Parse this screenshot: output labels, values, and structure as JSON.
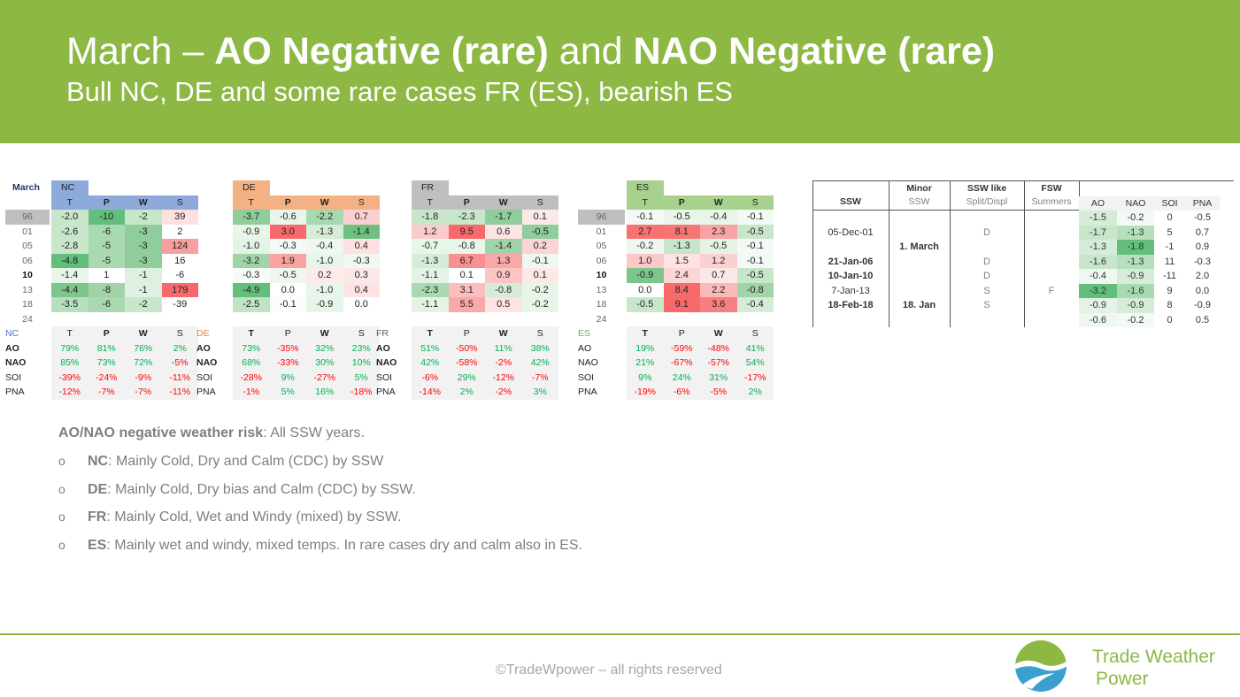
{
  "header": {
    "title_pre": "March – ",
    "title_b1": "AO Negative (rare)",
    "title_mid": " and ",
    "title_b2": "NAO Negative (rare)",
    "subtitle": "Bull NC, DE and some rare cases FR (ES), bearish ES"
  },
  "month_label": "March",
  "years": [
    "96",
    "01",
    "05",
    "06",
    "10",
    "13",
    "18",
    "24"
  ],
  "bold_year": "10",
  "metric_headers": [
    "T",
    "P",
    "W",
    "S"
  ],
  "index_labels": [
    "AO",
    "NAO",
    "SOI",
    "PNA"
  ],
  "regions": [
    {
      "name": "NC",
      "color": "#8eaadb",
      "name_color": "#4472c4",
      "values": [
        [
          "-2.0",
          "-10",
          "-2",
          "39"
        ],
        [
          "-2.6",
          "-6",
          "-3",
          "2"
        ],
        [
          "-2.8",
          "-5",
          "-3",
          "124"
        ],
        [
          "-4.8",
          "-5",
          "-3",
          "16"
        ],
        [
          "-1.4",
          "1",
          "-1",
          "-6"
        ],
        [
          "-4.4",
          "-8",
          "-1",
          "179"
        ],
        [
          "-3.5",
          "-6",
          "-2",
          "-39"
        ],
        [
          "",
          "",
          "",
          ""
        ]
      ],
      "colors": [
        [
          "#c8e6c9",
          "#63be7b",
          "#c8e6c9",
          "#fde0e0"
        ],
        [
          "#c8e6c9",
          "#a9d9b0",
          "#8fce9c",
          "#ffffff"
        ],
        [
          "#c8e6c9",
          "#a9d9b0",
          "#8fce9c",
          "#f8a0a0"
        ],
        [
          "#63be7b",
          "#a9d9b0",
          "#8fce9c",
          "#ffffff"
        ],
        [
          "#e8f5e9",
          "#ffffff",
          "#dff0e2",
          "#ffffff"
        ],
        [
          "#7cc68c",
          "#a0d4a8",
          "#dff0e2",
          "#f8696b"
        ],
        [
          "#b5dfbd",
          "#a9d9b0",
          "#c8e6c9",
          "#ffffff"
        ],
        [
          "#ffffff",
          "#ffffff",
          "#ffffff",
          "#ffffff"
        ]
      ],
      "corr": [
        [
          "79%",
          "81%",
          "76%",
          "2%"
        ],
        [
          "85%",
          "73%",
          "72%",
          "-5%"
        ],
        [
          "-39%",
          "-24%",
          "-9%",
          "-11%"
        ],
        [
          "-12%",
          "-7%",
          "-7%",
          "-11%"
        ]
      ]
    },
    {
      "name": "DE",
      "color": "#f4b183",
      "name_color": "#ed7d31",
      "values": [
        [
          "-3.7",
          "-0.6",
          "-2.2",
          "0.7"
        ],
        [
          "-0.9",
          "3.0",
          "-1.3",
          "-1.4"
        ],
        [
          "-1.0",
          "-0.3",
          "-0.4",
          "0.4"
        ],
        [
          "-3.2",
          "1.9",
          "-1.0",
          "-0.3"
        ],
        [
          "-0.3",
          "-0.5",
          "0.2",
          "0.3"
        ],
        [
          "-4.9",
          "0.0",
          "-1.0",
          "0.4"
        ],
        [
          "-2.5",
          "-0.1",
          "-0.9",
          "0.0"
        ],
        [
          "",
          "",
          "",
          ""
        ]
      ],
      "colors": [
        [
          "#8fce9c",
          "#e8f5e9",
          "#a9d9b0",
          "#fbd0d0"
        ],
        [
          "#e8f5e9",
          "#f8696b",
          "#d5ecd8",
          "#6cc17f"
        ],
        [
          "#e3f3e6",
          "#f3f9f4",
          "#eef8f0",
          "#fde0e0"
        ],
        [
          "#a0d4a8",
          "#f9a3a3",
          "#e8f5e9",
          "#f1f8f2"
        ],
        [
          "#f6fbf7",
          "#eef8f0",
          "#fdeaea",
          "#fde8e8"
        ],
        [
          "#63be7b",
          "#ffffff",
          "#e8f5e9",
          "#fde3e3"
        ],
        [
          "#bfe3c5",
          "#fafdfb",
          "#e8f5e9",
          "#ffffff"
        ],
        [
          "#ffffff",
          "#ffffff",
          "#ffffff",
          "#ffffff"
        ]
      ],
      "corr": [
        [
          "73%",
          "-35%",
          "32%",
          "23%"
        ],
        [
          "68%",
          "-33%",
          "30%",
          "10%"
        ],
        [
          "-28%",
          "9%",
          "-27%",
          "5%"
        ],
        [
          "-1%",
          "5%",
          "16%",
          "-18%"
        ]
      ]
    },
    {
      "name": "FR",
      "color": "#bfbfbf",
      "name_color": "#595959",
      "values": [
        [
          "-1.8",
          "-2.3",
          "-1.7",
          "0.1"
        ],
        [
          "1.2",
          "9.5",
          "0.6",
          "-0.5"
        ],
        [
          "-0.7",
          "-0.8",
          "-1.4",
          "0.2"
        ],
        [
          "-1.3",
          "6.7",
          "1.3",
          "-0.1"
        ],
        [
          "-1.1",
          "0.1",
          "0.9",
          "0.1"
        ],
        [
          "-2.3",
          "3.1",
          "-0.8",
          "-0.2"
        ],
        [
          "-1.1",
          "5.5",
          "0.5",
          "-0.2"
        ],
        [
          "",
          "",
          "",
          ""
        ]
      ],
      "colors": [
        [
          "#c8e6c9",
          "#c8e6c9",
          "#8fce9c",
          "#fde8e8"
        ],
        [
          "#fbcaca",
          "#f8696b",
          "#fde3e3",
          "#8fce9c"
        ],
        [
          "#e8f5e9",
          "#e8f5e9",
          "#a0d4a8",
          "#fbd5d5"
        ],
        [
          "#d5ecd8",
          "#f98f8f",
          "#f9a8a8",
          "#eef8f0"
        ],
        [
          "#e3f3e6",
          "#ffffff",
          "#fcc5c5",
          "#fde8e8"
        ],
        [
          "#a9d9b0",
          "#fbbdbd",
          "#d5ecd8",
          "#e8f5e9"
        ],
        [
          "#e3f3e6",
          "#faa9a9",
          "#fde3e3",
          "#e8f5e9"
        ],
        [
          "#ffffff",
          "#ffffff",
          "#ffffff",
          "#ffffff"
        ]
      ],
      "corr": [
        [
          "51%",
          "-50%",
          "11%",
          "38%"
        ],
        [
          "42%",
          "-58%",
          "-2%",
          "42%"
        ],
        [
          "-6%",
          "29%",
          "-12%",
          "-7%"
        ],
        [
          "-14%",
          "2%",
          "-2%",
          "3%"
        ]
      ]
    },
    {
      "name": "ES",
      "color": "#a9d18e",
      "name_color": "#70ad47",
      "values": [
        [
          "-0.1",
          "-0.5",
          "-0.4",
          "-0.1"
        ],
        [
          "2.7",
          "8.1",
          "2.3",
          "-0.5"
        ],
        [
          "-0.2",
          "-1.3",
          "-0.5",
          "-0.1"
        ],
        [
          "1.0",
          "1.5",
          "1.2",
          "-0.1"
        ],
        [
          "-0.9",
          "2.4",
          "0.7",
          "-0.5"
        ],
        [
          "0.0",
          "8.4",
          "2.2",
          "-0.8"
        ],
        [
          "-0.5",
          "9.1",
          "3.6",
          "-0.4"
        ],
        [
          "",
          "",
          "",
          ""
        ]
      ],
      "colors": [
        [
          "#f3f9f4",
          "#e8f5e9",
          "#e8f5e9",
          "#f3f9f4"
        ],
        [
          "#f87272",
          "#f87575",
          "#f9a3a3",
          "#c8e6c9"
        ],
        [
          "#eef8f0",
          "#c8e6c9",
          "#e3f3e6",
          "#f3f9f4"
        ],
        [
          "#fbc7c7",
          "#fde3e3",
          "#fbd0d0",
          "#f3f9f4"
        ],
        [
          "#7cc68c",
          "#fcd6d6",
          "#fde8e8",
          "#c8e6c9"
        ],
        [
          "#ffffff",
          "#f8696b",
          "#fbbaba",
          "#a0d4a8"
        ],
        [
          "#c8e6c9",
          "#f8696b",
          "#f87f7f",
          "#d5ecd8"
        ],
        [
          "#ffffff",
          "#ffffff",
          "#ffffff",
          "#ffffff"
        ]
      ],
      "corr": [
        [
          "19%",
          "-59%",
          "-48%",
          "41%"
        ],
        [
          "21%",
          "-67%",
          "-57%",
          "54%"
        ],
        [
          "9%",
          "24%",
          "31%",
          "-17%"
        ],
        [
          "-19%",
          "-6%",
          "-5%",
          "2%"
        ]
      ]
    }
  ],
  "ssw_table": {
    "headers": {
      "ssw": "SSW",
      "minor": "Minor",
      "minor_sub": "SSW",
      "like": "SSW like",
      "like_sub": "Split/Displ",
      "fsw": "FSW",
      "fsw_sub": "Summers",
      "idx": [
        "AO",
        "NAO",
        "SOI",
        "PNA"
      ]
    },
    "rows": [
      {
        "ssw": "",
        "minor": "",
        "like": "",
        "fsw": "",
        "idx": [
          "-1.5",
          "-0.2",
          "0",
          "-0.5"
        ],
        "bold": false
      },
      {
        "ssw": "05-Dec-01",
        "minor": "",
        "like": "D",
        "fsw": "",
        "idx": [
          "-1.7",
          "-1.3",
          "5",
          "0.7"
        ],
        "bold": false
      },
      {
        "ssw": "",
        "minor": "1. March",
        "like": "",
        "fsw": "",
        "idx": [
          "-1.3",
          "-1.8",
          "-1",
          "0.9"
        ],
        "bold": false
      },
      {
        "ssw": "21-Jan-06",
        "minor": "",
        "like": "D",
        "fsw": "",
        "idx": [
          "-1.6",
          "-1.3",
          "11",
          "-0.3"
        ],
        "bold": true
      },
      {
        "ssw": "10-Jan-10",
        "minor": "",
        "like": "D",
        "fsw": "",
        "idx": [
          "-0.4",
          "-0.9",
          "-11",
          "2.0"
        ],
        "bold": true
      },
      {
        "ssw": "7-Jan-13",
        "minor": "",
        "like": "S",
        "fsw": "F",
        "idx": [
          "-3.2",
          "-1.6",
          "9",
          "0.0"
        ],
        "bold": false
      },
      {
        "ssw": "18-Feb-18",
        "minor": "18. Jan",
        "like": "S",
        "fsw": "",
        "idx": [
          "-0.9",
          "-0.9",
          "8",
          "-0.9"
        ],
        "bold": true
      },
      {
        "ssw": "",
        "minor": "",
        "like": "",
        "fsw": "",
        "idx": [
          "-0.6",
          "-0.2",
          "0",
          "0.5"
        ],
        "bold": false
      }
    ],
    "idx_colors": [
      [
        "#d5ecd8",
        "#f3f9f4"
      ],
      [
        "#c8e6c9",
        "#b5dfbd"
      ],
      [
        "#d5ecd8",
        "#63be7b"
      ],
      [
        "#c8e6c9",
        "#b5dfbd"
      ],
      [
        "#eef8f0",
        "#d5ecd8"
      ],
      [
        "#63be7b",
        "#a9d9b0"
      ],
      [
        "#e3f3e6",
        "#d5ecd8"
      ],
      [
        "#eef8f0",
        "#f3f9f4"
      ]
    ]
  },
  "notes": {
    "main_b": "AO/NAO negative weather risk",
    "main": ": All SSW years.",
    "bullet_char": "o",
    "bullets": [
      {
        "b": "NC",
        "t": ": Mainly Cold, Dry and Calm (CDC) by SSW"
      },
      {
        "b": "DE",
        "t": ": Mainly Cold, Dry bias and Calm (CDC) by SSW."
      },
      {
        "b": "FR",
        "t": ": Mainly Cold, Wet and Windy (mixed) by SSW."
      },
      {
        "b": "ES",
        "t": ": Mainly wet and windy, mixed temps. In rare cases dry and calm also in ES."
      }
    ]
  },
  "footer": {
    "copyright": "©TradeWpower – all rights reserved",
    "logo_line1": "Trade Weather",
    "logo_line2": "Power"
  },
  "palette": {
    "green": "#8db843",
    "pos_corr": "#00b050",
    "neg_corr": "#ff0000"
  }
}
